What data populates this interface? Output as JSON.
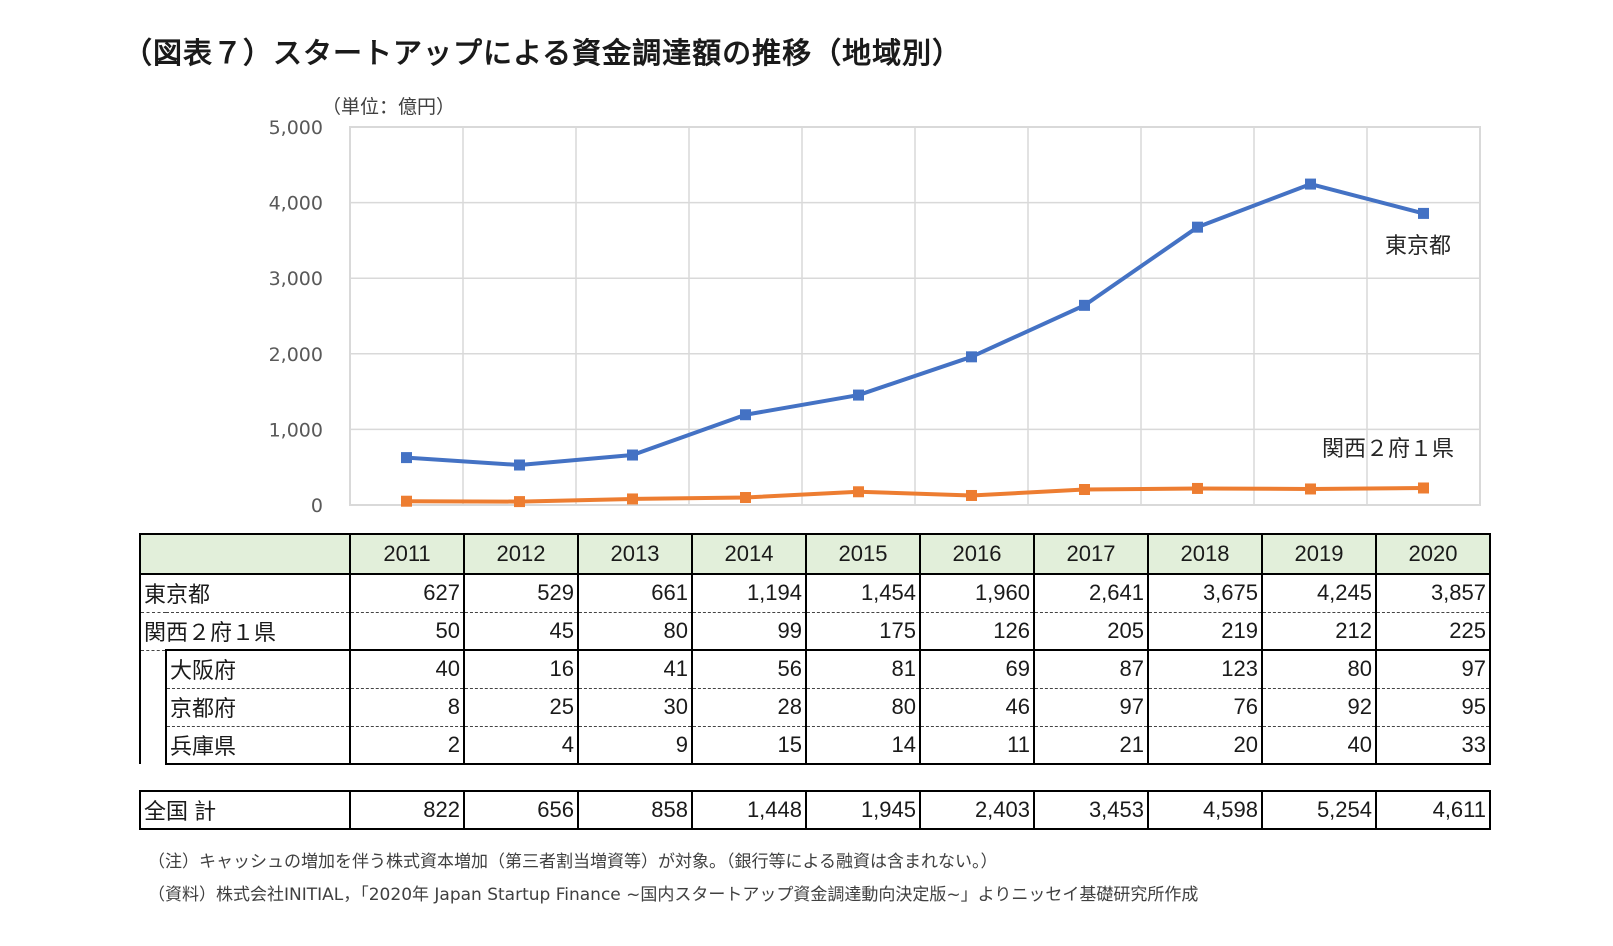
{
  "title": "（図表７）スタートアップによる資金調達額の推移（地域別）",
  "chart_data": {
    "type": "line",
    "unit_label": "（単位：億円）",
    "categories": [
      "2011",
      "2012",
      "2013",
      "2014",
      "2015",
      "2016",
      "2017",
      "2018",
      "2019",
      "2020"
    ],
    "series": [
      {
        "name": "東京都",
        "color": "#4472c4",
        "values": [
          627,
          529,
          661,
          1194,
          1454,
          1960,
          2641,
          3675,
          4245,
          3857
        ]
      },
      {
        "name": "関西２府１県",
        "color": "#ed7d31",
        "values": [
          50,
          45,
          80,
          99,
          175,
          126,
          205,
          219,
          212,
          225
        ]
      }
    ],
    "ylim": [
      0,
      5000
    ],
    "yticks": [
      "0",
      "1,000",
      "2,000",
      "3,000",
      "4,000",
      "5,000"
    ],
    "grid": true,
    "legend": "inline-labels"
  },
  "table": {
    "years": [
      "2011",
      "2012",
      "2013",
      "2014",
      "2015",
      "2016",
      "2017",
      "2018",
      "2019",
      "2020"
    ],
    "rows": [
      {
        "label": "東京都",
        "values": [
          "627",
          "529",
          "661",
          "1,194",
          "1,454",
          "1,960",
          "2,641",
          "3,675",
          "4,245",
          "3,857"
        ]
      },
      {
        "label": "関西２府１県",
        "values": [
          "50",
          "45",
          "80",
          "99",
          "175",
          "126",
          "205",
          "219",
          "212",
          "225"
        ]
      },
      {
        "label": "大阪府",
        "values": [
          "40",
          "16",
          "41",
          "56",
          "81",
          "69",
          "87",
          "123",
          "80",
          "97"
        ]
      },
      {
        "label": "京都府",
        "values": [
          "8",
          "25",
          "30",
          "28",
          "80",
          "46",
          "97",
          "76",
          "92",
          "95"
        ]
      },
      {
        "label": "兵庫県",
        "values": [
          "2",
          "4",
          "9",
          "15",
          "14",
          "11",
          "21",
          "20",
          "40",
          "33"
        ]
      }
    ],
    "total": {
      "label": "全国 計",
      "values": [
        "822",
        "656",
        "858",
        "1,448",
        "1,945",
        "2,403",
        "3,453",
        "4,598",
        "5,254",
        "4,611"
      ]
    }
  },
  "notes": [
    "（注）キャッシュの増加を伴う株式資本増加（第三者割当増資等）が対象。（銀行等による融資は含まれない。）",
    "（資料）株式会社INITIAL，「2020年 Japan Startup Finance ~国内スタートアップ資金調達動向決定版~」よりニッセイ基礎研究所作成"
  ]
}
